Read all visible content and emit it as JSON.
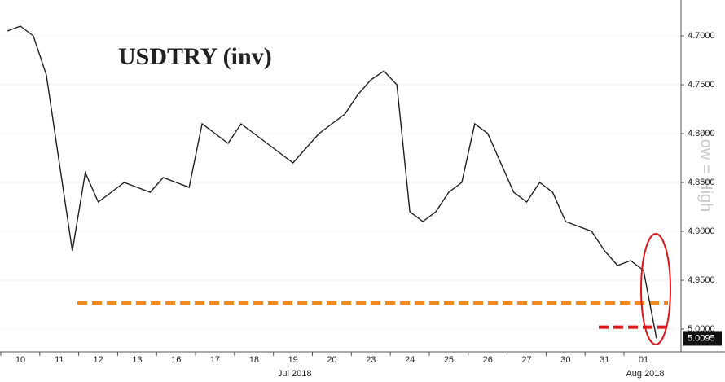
{
  "chart_data": {
    "type": "line",
    "title": "USDTRY (inv)",
    "side_note": "Low = High",
    "categories": [
      null,
      "10",
      null,
      null,
      "11",
      null,
      null,
      "12",
      null,
      null,
      "13",
      null,
      null,
      "16",
      null,
      null,
      "17",
      null,
      null,
      "18",
      null,
      null,
      "19",
      null,
      null,
      "20",
      null,
      null,
      "23",
      null,
      null,
      "24",
      null,
      null,
      "25",
      null,
      null,
      "26",
      null,
      null,
      "27",
      null,
      null,
      "30",
      null,
      null,
      "31",
      null,
      null,
      "01",
      null
    ],
    "month_labels": [
      {
        "category": "19",
        "label": "Jul 2018"
      },
      {
        "category": "01",
        "label": "Aug 2018"
      }
    ],
    "series": [
      {
        "name": "USDTRY",
        "color": "#1f1f1f",
        "values": [
          4.695,
          4.69,
          4.7,
          4.74,
          4.83,
          4.92,
          4.84,
          4.87,
          4.86,
          4.85,
          4.855,
          4.86,
          4.845,
          4.85,
          4.855,
          4.79,
          4.8,
          4.81,
          4.79,
          4.8,
          4.81,
          4.82,
          4.83,
          4.815,
          4.8,
          4.79,
          4.78,
          4.76,
          4.745,
          4.736,
          4.75,
          4.88,
          4.89,
          4.88,
          4.86,
          4.85,
          4.79,
          4.8,
          4.83,
          4.86,
          4.87,
          4.85,
          4.86,
          4.89,
          4.895,
          4.9,
          4.92,
          4.935,
          4.93,
          4.94,
          5.0095
        ]
      }
    ],
    "ylim": [
      4.6633,
      5.0233
    ],
    "inverted": true,
    "yticks": [
      {
        "value": 4.7,
        "label": "4.7000"
      },
      {
        "value": 4.75,
        "label": "4.7500"
      },
      {
        "value": 4.8,
        "label": "4.8000"
      },
      {
        "value": 4.85,
        "label": "4.8500"
      },
      {
        "value": 4.9,
        "label": "4.9000"
      },
      {
        "value": 4.95,
        "label": "4.9500"
      },
      {
        "value": 5.0,
        "label": "5.0000"
      }
    ],
    "reference_lines": [
      {
        "value": 4.9733,
        "color": "#f08a1c"
      },
      {
        "value": 4.998,
        "color": "#e0161b"
      }
    ],
    "grid": true
  }
}
